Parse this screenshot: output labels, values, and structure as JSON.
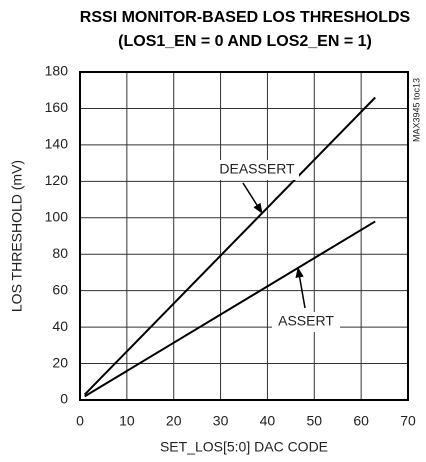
{
  "chart_data": {
    "type": "line",
    "title": "RSSI MONITOR-BASED LOS THRESHOLDS",
    "subtitle": "(LOS1_EN = 0 AND LOS2_EN = 1)",
    "x_label": "SET_LOS[5:0] DAC CODE",
    "y_label": "LOS THRESHOLD (mV)",
    "figure_id": "MAX3945 toc13",
    "x": [
      1,
      63
    ],
    "series": [
      {
        "name": "DEASSERT",
        "color": "#000000",
        "values": [
          3,
          166
        ]
      },
      {
        "name": "ASSERT",
        "color": "#000000",
        "values": [
          2,
          98
        ]
      }
    ],
    "xlim": [
      0,
      70
    ],
    "xticks": [
      0,
      10,
      20,
      30,
      40,
      50,
      60,
      70
    ],
    "ylim": [
      0,
      180
    ],
    "yticks": [
      0,
      20,
      40,
      60,
      80,
      100,
      120,
      140,
      160,
      180
    ],
    "grid": true
  }
}
